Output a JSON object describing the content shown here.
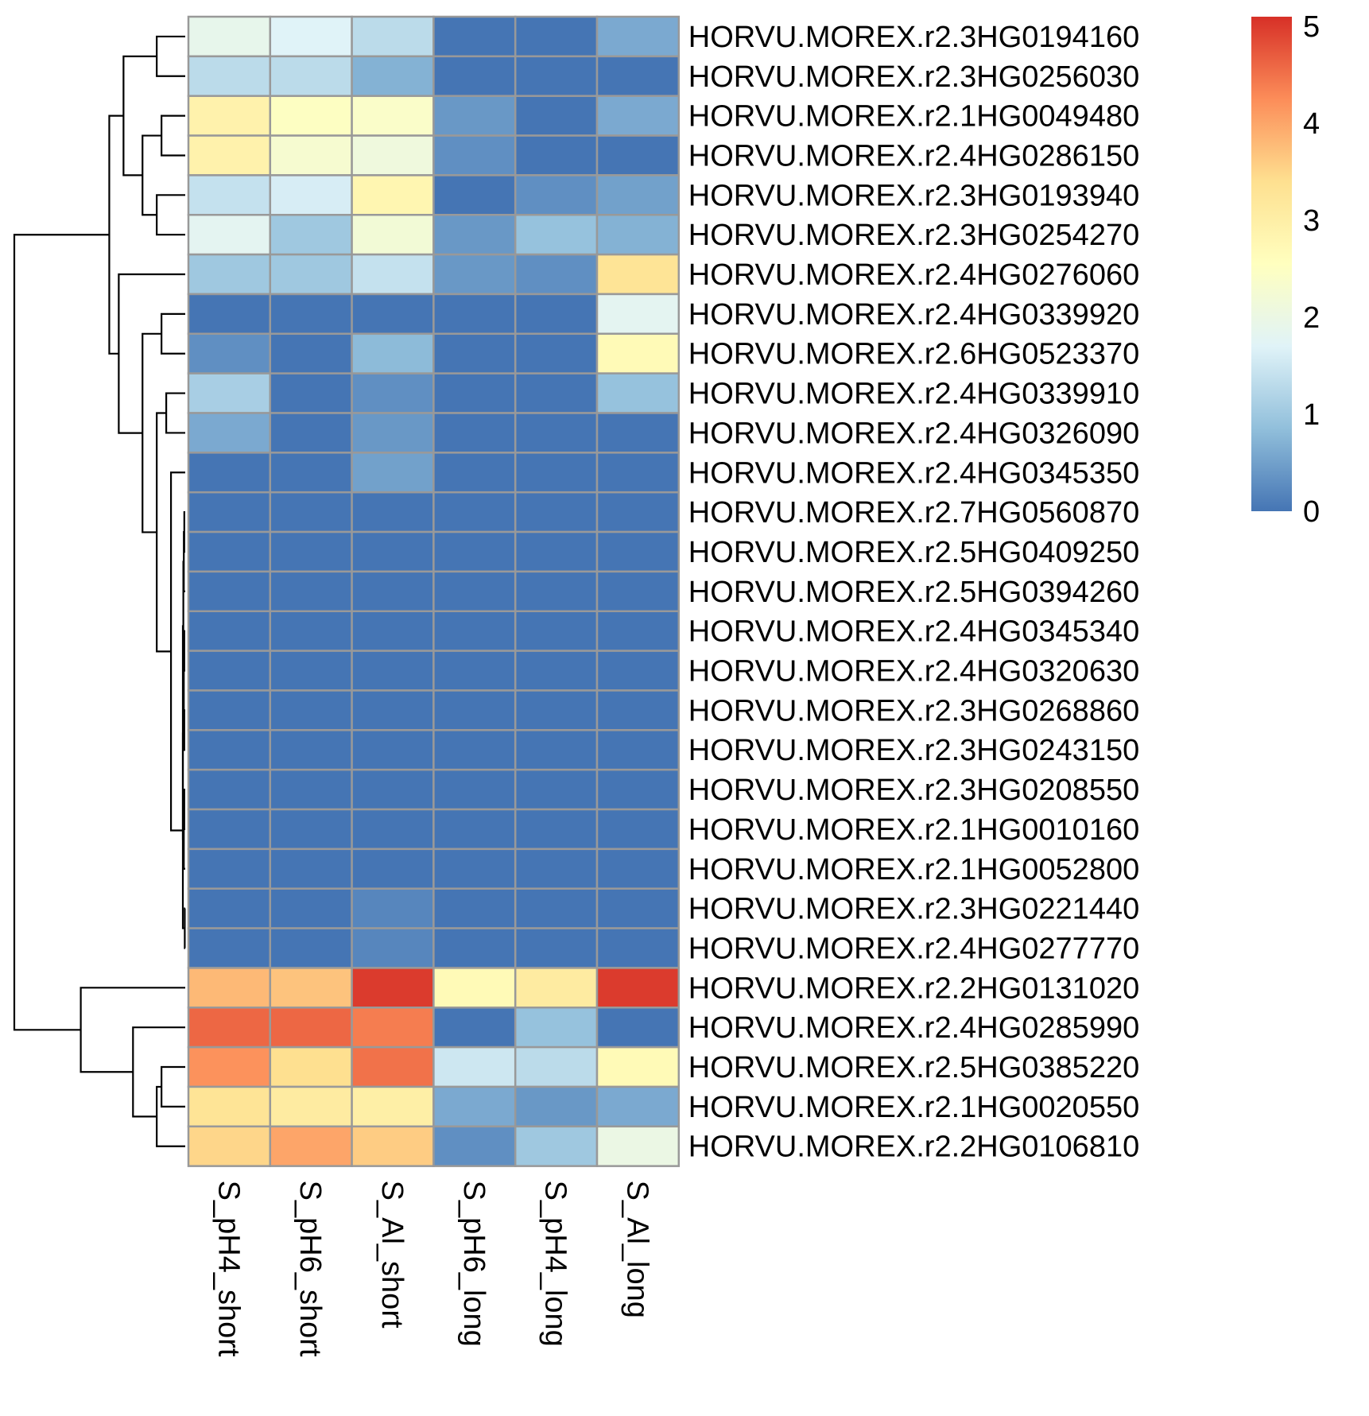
{
  "chart_data": {
    "type": "heatmap",
    "columns": [
      "S_pH4_short",
      "S_pH6_short",
      "S_Al_short",
      "S_pH6_long",
      "S_pH4_long",
      "S_Al_long"
    ],
    "rows": [
      {
        "gene": "HORVU.MOREX.r2.3HG0194160",
        "values": [
          1.9,
          1.7,
          1.3,
          0.0,
          0.0,
          0.6
        ]
      },
      {
        "gene": "HORVU.MOREX.r2.3HG0256030",
        "values": [
          1.3,
          1.3,
          0.7,
          0.0,
          0.0,
          0.0
        ]
      },
      {
        "gene": "HORVU.MOREX.r2.1HG0049480",
        "values": [
          2.9,
          2.5,
          2.4,
          0.4,
          0.0,
          0.6
        ]
      },
      {
        "gene": "HORVU.MOREX.r2.4HG0286150",
        "values": [
          2.9,
          2.3,
          2.1,
          0.3,
          0.0,
          0.0
        ]
      },
      {
        "gene": "HORVU.MOREX.r2.3HG0193940",
        "values": [
          1.4,
          1.6,
          2.8,
          0.0,
          0.3,
          0.5
        ]
      },
      {
        "gene": "HORVU.MOREX.r2.3HG0254270",
        "values": [
          1.8,
          1.0,
          2.2,
          0.4,
          0.9,
          0.7
        ]
      },
      {
        "gene": "HORVU.MOREX.r2.4HG0276060",
        "values": [
          1.0,
          1.0,
          1.4,
          0.4,
          0.3,
          3.3
        ]
      },
      {
        "gene": "HORVU.MOREX.r2.4HG0339920",
        "values": [
          0.0,
          0.0,
          0.0,
          0.0,
          0.0,
          1.8
        ]
      },
      {
        "gene": "HORVU.MOREX.r2.6HG0523370",
        "values": [
          0.3,
          0.0,
          0.8,
          0.0,
          0.0,
          2.7
        ]
      },
      {
        "gene": "HORVU.MOREX.r2.4HG0339910",
        "values": [
          1.1,
          0.0,
          0.3,
          0.0,
          0.0,
          0.9
        ]
      },
      {
        "gene": "HORVU.MOREX.r2.4HG0326090",
        "values": [
          0.6,
          0.0,
          0.4,
          0.0,
          0.0,
          0.0
        ]
      },
      {
        "gene": "HORVU.MOREX.r2.4HG0345350",
        "values": [
          0.0,
          0.0,
          0.5,
          0.0,
          0.0,
          0.0
        ]
      },
      {
        "gene": "HORVU.MOREX.r2.7HG0560870",
        "values": [
          0.0,
          0.0,
          0.0,
          0.0,
          0.0,
          0.0
        ]
      },
      {
        "gene": "HORVU.MOREX.r2.5HG0409250",
        "values": [
          0.0,
          0.0,
          0.0,
          0.0,
          0.0,
          0.0
        ]
      },
      {
        "gene": "HORVU.MOREX.r2.5HG0394260",
        "values": [
          0.0,
          0.0,
          0.0,
          0.0,
          0.0,
          0.0
        ]
      },
      {
        "gene": "HORVU.MOREX.r2.4HG0345340",
        "values": [
          0.0,
          0.0,
          0.0,
          0.0,
          0.0,
          0.0
        ]
      },
      {
        "gene": "HORVU.MOREX.r2.4HG0320630",
        "values": [
          0.0,
          0.0,
          0.0,
          0.0,
          0.0,
          0.0
        ]
      },
      {
        "gene": "HORVU.MOREX.r2.3HG0268860",
        "values": [
          0.0,
          0.0,
          0.0,
          0.0,
          0.0,
          0.0
        ]
      },
      {
        "gene": "HORVU.MOREX.r2.3HG0243150",
        "values": [
          0.0,
          0.0,
          0.0,
          0.0,
          0.0,
          0.0
        ]
      },
      {
        "gene": "HORVU.MOREX.r2.3HG0208550",
        "values": [
          0.0,
          0.0,
          0.0,
          0.0,
          0.0,
          0.0
        ]
      },
      {
        "gene": "HORVU.MOREX.r2.1HG0010160",
        "values": [
          0.0,
          0.0,
          0.0,
          0.0,
          0.0,
          0.0
        ]
      },
      {
        "gene": "HORVU.MOREX.r2.1HG0052800",
        "values": [
          0.0,
          0.0,
          0.0,
          0.0,
          0.0,
          0.0
        ]
      },
      {
        "gene": "HORVU.MOREX.r2.3HG0221440",
        "values": [
          0.0,
          0.0,
          0.2,
          0.0,
          0.0,
          0.0
        ]
      },
      {
        "gene": "HORVU.MOREX.r2.4HG0277770",
        "values": [
          0.0,
          0.0,
          0.2,
          0.0,
          0.0,
          0.0
        ]
      },
      {
        "gene": "HORVU.MOREX.r2.2HG0131020",
        "values": [
          3.8,
          3.7,
          5.0,
          2.7,
          3.1,
          5.0
        ]
      },
      {
        "gene": "HORVU.MOREX.r2.4HG0285990",
        "values": [
          4.6,
          4.6,
          4.4,
          0.0,
          0.9,
          0.0
        ]
      },
      {
        "gene": "HORVU.MOREX.r2.5HG0385220",
        "values": [
          4.2,
          3.4,
          4.5,
          1.5,
          1.3,
          2.7
        ]
      },
      {
        "gene": "HORVU.MOREX.r2.1HG0020550",
        "values": [
          3.3,
          3.1,
          3.0,
          0.6,
          0.4,
          0.6
        ]
      },
      {
        "gene": "HORVU.MOREX.r2.2HG0106810",
        "values": [
          3.5,
          4.0,
          3.6,
          0.3,
          1.0,
          2.0
        ]
      }
    ],
    "legend": {
      "ticks": [
        0,
        1,
        2,
        3,
        4,
        5
      ],
      "min": 0,
      "max": 5.1,
      "placement": "right"
    },
    "color_scale": [
      "#4575b4",
      "#91bfdb",
      "#e0f3f8",
      "#ffffbf",
      "#fee090",
      "#fc8d59",
      "#d73027"
    ],
    "cell_border_color": "#999999",
    "dendrogram_color": "#000000",
    "row_dendrogram": {
      "merges": [
        [
          [
            0
          ],
          [
            1
          ],
          0.6
        ],
        [
          [
            2
          ],
          [
            3
          ],
          0.5
        ],
        [
          [
            4
          ],
          [
            5
          ],
          0.6
        ],
        [
          [
            2,
            3
          ],
          [
            4,
            5
          ],
          0.9
        ],
        [
          [
            0,
            1
          ],
          [
            2,
            3,
            4,
            5
          ],
          1.3
        ],
        [
          [
            7
          ],
          [
            8
          ],
          0.5
        ],
        [
          [
            9
          ],
          [
            10
          ],
          0.4
        ],
        [
          [
            12
          ],
          [
            13
          ],
          0.02
        ],
        [
          [
            12,
            13
          ],
          [
            14
          ],
          0.03
        ],
        [
          [
            15
          ],
          [
            16
          ],
          0.02
        ],
        [
          [
            17
          ],
          [
            18
          ],
          0.02
        ],
        [
          [
            15,
            16
          ],
          [
            17,
            18
          ],
          0.03
        ],
        [
          [
            12,
            13,
            14
          ],
          [
            15,
            16,
            17,
            18
          ],
          0.04
        ],
        [
          [
            19
          ],
          [
            20
          ],
          0.02
        ],
        [
          [
            19,
            20
          ],
          [
            21
          ],
          0.03
        ],
        [
          [
            12,
            13,
            14,
            15,
            16,
            17,
            18
          ],
          [
            19,
            20,
            21
          ],
          0.05
        ],
        [
          [
            22
          ],
          [
            23
          ],
          0.01
        ],
        [
          [
            12,
            13,
            14,
            15,
            16,
            17,
            18,
            19,
            20,
            21
          ],
          [
            22,
            23
          ],
          0.05
        ],
        [
          [
            11
          ],
          [
            12,
            13,
            14,
            15,
            16,
            17,
            18,
            19,
            20,
            21,
            22,
            23
          ],
          0.3
        ],
        [
          [
            9,
            10
          ],
          [
            11,
            12,
            13,
            14,
            15,
            16,
            17,
            18,
            19,
            20,
            21,
            22,
            23
          ],
          0.6
        ],
        [
          [
            7,
            8
          ],
          [
            9,
            10,
            11,
            12,
            13,
            14,
            15,
            16,
            17,
            18,
            19,
            20,
            21,
            22,
            23
          ],
          0.9
        ],
        [
          [
            6
          ],
          [
            7,
            8,
            9,
            10,
            11,
            12,
            13,
            14,
            15,
            16,
            17,
            18,
            19,
            20,
            21,
            22,
            23
          ],
          1.4
        ],
        [
          [
            0,
            1,
            2,
            3,
            4,
            5
          ],
          [
            6,
            7,
            8,
            9,
            10,
            11,
            12,
            13,
            14,
            15,
            16,
            17,
            18,
            19,
            20,
            21,
            22,
            23
          ],
          1.6
        ],
        [
          [
            26
          ],
          [
            27
          ],
          0.5
        ],
        [
          [
            26,
            27
          ],
          [
            28
          ],
          0.6
        ],
        [
          [
            25
          ],
          [
            26,
            27,
            28
          ],
          1.1
        ],
        [
          [
            24
          ],
          [
            25,
            26,
            27,
            28
          ],
          2.2
        ],
        [
          [
            0,
            1,
            2,
            3,
            4,
            5,
            6,
            7,
            8,
            9,
            10,
            11,
            12,
            13,
            14,
            15,
            16,
            17,
            18,
            19,
            20,
            21,
            22,
            23
          ],
          [
            24,
            25,
            26,
            27,
            28
          ],
          3.6
        ]
      ]
    }
  }
}
